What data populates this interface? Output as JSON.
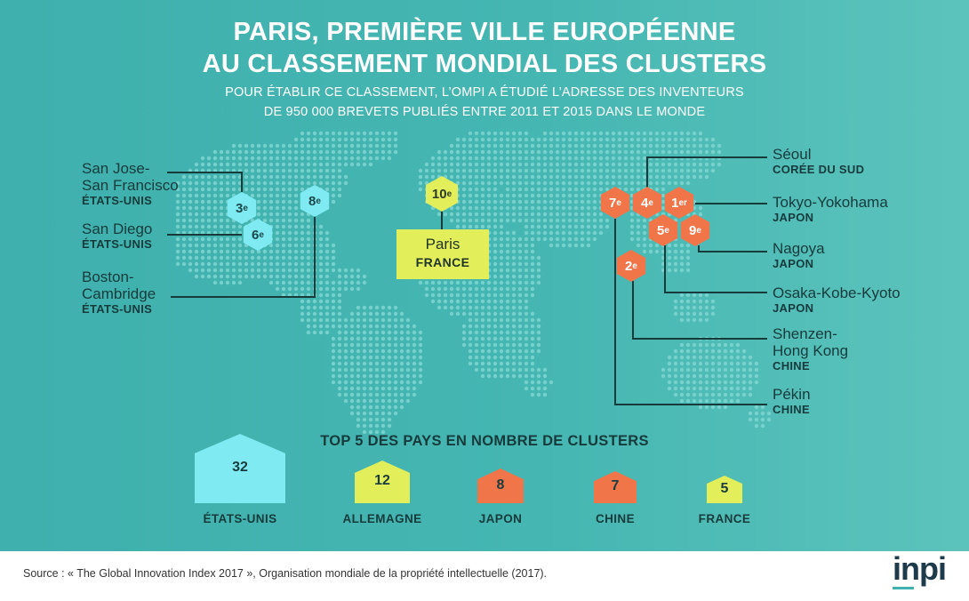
{
  "title_line1": "PARIS, PREMIÈRE VILLE EUROPÉENNE",
  "title_line2": "AU CLASSEMENT MONDIAL DES CLUSTERS",
  "subtitle_line1": "POUR  ÉTABLIR CE CLASSEMENT, L’OMPI A ÉTUDIÉ L’ADRESSE DES INVENTEURS",
  "subtitle_line2": "DE 950 000 BREVETS PUBLIÉS ENTRE 2011 ET 2015 DANS LE MONDE",
  "clusters": {
    "sanjose": {
      "city": "San Jose-\nSan Francisco",
      "country": "ÉTATS-UNIS",
      "rank": "3",
      "sup": "e"
    },
    "sandiego": {
      "city": "San Diego",
      "country": "ÉTATS-UNIS",
      "rank": "6",
      "sup": "e"
    },
    "boston": {
      "city": "Boston-\nCambridge",
      "country": "ÉTATS-UNIS",
      "rank": "8",
      "sup": "e"
    },
    "paris": {
      "city": "Paris",
      "country": "FRANCE",
      "rank": "10",
      "sup": "e"
    },
    "seoul": {
      "city": "Séoul",
      "country": "CORÉE DU SUD",
      "rank": "4",
      "sup": "e"
    },
    "tokyo": {
      "city": "Tokyo-Yokohama",
      "country": "JAPON",
      "rank": "1",
      "sup": "er"
    },
    "nagoya": {
      "city": "Nagoya",
      "country": "JAPON",
      "rank": "9",
      "sup": "e"
    },
    "osaka": {
      "city": "Osaka-Kobe-Kyoto",
      "country": "JAPON",
      "rank": "5",
      "sup": "e"
    },
    "shenzhen": {
      "city": "Shenzen-\nHong Kong",
      "country": "CHINE",
      "rank": "2",
      "sup": "e"
    },
    "pekin": {
      "city": "Pékin",
      "country": "CHINE",
      "rank": "7",
      "sup": "e"
    }
  },
  "top5_title": "TOP 5 DES PAYS EN NOMBRE DE CLUSTERS",
  "chart_data": {
    "type": "bar",
    "title": "TOP 5 DES PAYS EN NOMBRE DE CLUSTERS",
    "categories": [
      "ÉTATS-UNIS",
      "ALLEMAGNE",
      "JAPON",
      "CHINE",
      "FRANCE"
    ],
    "values": [
      32,
      12,
      8,
      7,
      5
    ],
    "colors": [
      "#7feaf2",
      "#e3ee5b",
      "#f07548",
      "#f07548",
      "#e3ee5b"
    ]
  },
  "source": "Source : « The Global Innovation Index 2017 », Organisation mondiale de la propriété intellectuelle (2017).",
  "logo_text": "inpi",
  "colors": {
    "cyan": "#7feaf2",
    "orange": "#f07548",
    "yellow": "#e3ee5b",
    "teal_bg": "#45b6b2",
    "dark": "#173a3c"
  }
}
